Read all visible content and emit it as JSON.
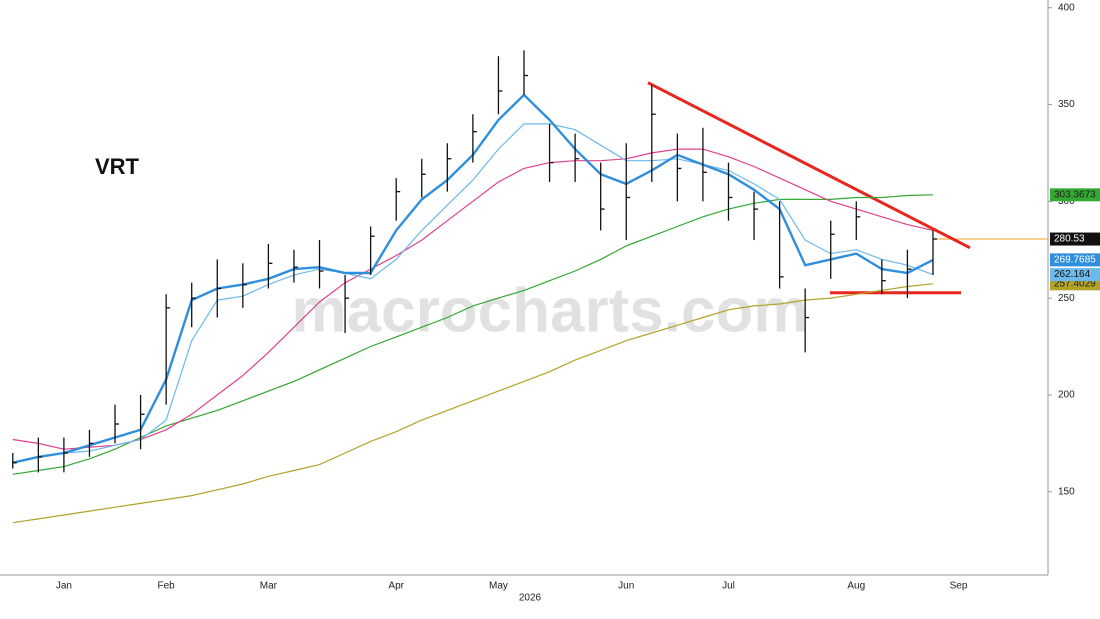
{
  "chart_data": {
    "type": "ohlc",
    "title": "VRT",
    "watermark": "macrocharts.com",
    "year_label": "2026",
    "categories": [
      null,
      null,
      "Jan",
      null,
      null,
      null,
      "Feb",
      null,
      null,
      null,
      "Mar",
      null,
      null,
      null,
      null,
      "Apr",
      null,
      null,
      null,
      "May",
      null,
      null,
      null,
      null,
      "Jun",
      null,
      null,
      null,
      "Jul",
      null,
      null,
      null,
      null,
      "Aug",
      null,
      null,
      null,
      "Sep",
      null,
      null,
      null
    ],
    "ylim": [
      107,
      404
    ],
    "yticks": [
      150,
      200,
      250,
      300,
      350,
      400
    ],
    "series": [
      {
        "color": "#b3a22a",
        "text_color": "#222",
        "values": [
          134,
          136,
          138,
          140,
          142,
          144,
          146,
          148,
          151,
          154,
          158,
          161,
          164,
          170,
          176,
          181,
          187,
          192,
          197,
          202,
          207,
          212,
          218,
          223,
          228,
          232,
          236,
          240,
          244,
          246,
          247,
          249,
          250,
          252,
          254,
          256,
          257.4029,
          null,
          null,
          null,
          null
        ],
        "last_label": 257.4029,
        "width": 1.2
      },
      {
        "color": "#33a833",
        "text_color": "#222",
        "values": [
          159,
          161,
          163,
          167,
          172,
          178,
          184,
          188,
          192,
          197,
          202,
          207,
          213,
          219,
          225,
          230,
          235,
          240,
          246,
          250,
          254,
          259,
          264,
          270,
          277,
          282,
          287,
          292,
          296,
          299,
          301,
          301,
          301,
          302,
          302,
          303,
          303.3673,
          null,
          null,
          null,
          null
        ],
        "last_label": 303.3673,
        "width": 1.2
      },
      {
        "color": "#e0408f",
        "values": [
          177,
          175,
          172,
          173,
          174,
          177,
          182,
          190,
          200,
          210,
          222,
          235,
          248,
          258,
          265,
          272,
          280,
          290,
          300,
          310,
          317,
          320,
          321,
          321,
          322,
          325,
          327,
          327,
          323,
          318,
          312,
          306,
          300,
          296,
          292,
          288,
          285,
          null,
          null,
          null,
          null
        ],
        "width": 1.2
      },
      {
        "color": "#6cb9ea",
        "text_color": "#111",
        "values": [
          165,
          168,
          170,
          171,
          174,
          177,
          187,
          228,
          249,
          251,
          257,
          262,
          265,
          263,
          260,
          270,
          285,
          298,
          311,
          327,
          340,
          340,
          337,
          329,
          321,
          321,
          322,
          319,
          316,
          309,
          301,
          280,
          273,
          275,
          270,
          267,
          262.164,
          null,
          null,
          null,
          null
        ],
        "last_label": 262.164,
        "width": 1.2
      },
      {
        "color": "#2f8fdd",
        "text_color": "#fff",
        "values": [
          165,
          168,
          170,
          174,
          178,
          182,
          208,
          249,
          255,
          257,
          260,
          265,
          266,
          263,
          263,
          285,
          301,
          311,
          324,
          342,
          355,
          342,
          327,
          314,
          309,
          316,
          324,
          319,
          314,
          306,
          296,
          267,
          270,
          273,
          265,
          263,
          269.7685,
          null,
          null,
          null,
          null
        ],
        "last_label": 269.7685,
        "width": 2.4
      },
      {
        "color": "#111111",
        "text_color": "#fff",
        "values": [
          165,
          168,
          170,
          175,
          185,
          190,
          245,
          250,
          255,
          257,
          268,
          266,
          264,
          250,
          282,
          305,
          314,
          322,
          336,
          357,
          365,
          320,
          322,
          296,
          302,
          345,
          317,
          315,
          302,
          296,
          261,
          240,
          283,
          292,
          259,
          265,
          280.53,
          null,
          null,
          null,
          null
        ],
        "high": [
          170,
          178,
          178,
          182,
          195,
          200,
          252,
          258,
          270,
          268,
          278,
          275,
          280,
          262,
          287,
          312,
          322,
          330,
          345,
          375,
          378,
          340,
          335,
          320,
          330,
          360,
          335,
          338,
          320,
          305,
          300,
          255,
          290,
          300,
          270,
          275,
          285,
          null,
          null,
          null,
          null
        ],
        "low": [
          162,
          160,
          160,
          168,
          175,
          172,
          195,
          235,
          240,
          245,
          255,
          258,
          255,
          232,
          262,
          290,
          302,
          305,
          320,
          345,
          355,
          310,
          310,
          285,
          280,
          310,
          300,
          300,
          290,
          280,
          255,
          222,
          260,
          280,
          252,
          250,
          262,
          null,
          null,
          null,
          null
        ],
        "last_label": 280.53
      }
    ],
    "annotations": [
      {
        "color": "#f5a623",
        "x": [
          36,
          40.5
        ],
        "y": [
          280.53,
          280.53
        ],
        "width": 1
      },
      {
        "color": "#e8261e",
        "x": [
          24.85,
          37.45
        ],
        "y": [
          361.3,
          276
        ],
        "width": 3
      },
      {
        "color": "#e8261e",
        "x": [
          31.97,
          37.1
        ],
        "y": [
          252.8,
          252.8
        ],
        "width": 3
      }
    ]
  }
}
